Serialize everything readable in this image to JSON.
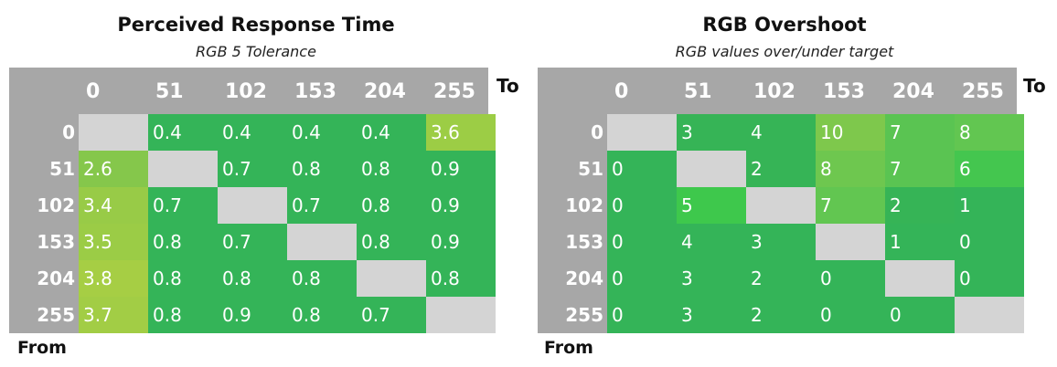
{
  "chart_data": [
    {
      "type": "heatmap",
      "title": "Perceived Response Time",
      "subtitle": "RGB 5 Tolerance",
      "to_label": "To",
      "from_label": "From",
      "columns": [
        "0",
        "51",
        "102",
        "153",
        "204",
        "255"
      ],
      "rows": [
        "0",
        "51",
        "102",
        "153",
        "204",
        "255"
      ],
      "values": [
        [
          null,
          "0.4",
          "0.4",
          "0.4",
          "0.4",
          "3.6"
        ],
        [
          "2.6",
          null,
          "0.7",
          "0.8",
          "0.8",
          "0.9"
        ],
        [
          "3.4",
          "0.7",
          null,
          "0.7",
          "0.8",
          "0.9"
        ],
        [
          "3.5",
          "0.8",
          "0.7",
          null,
          "0.8",
          "0.9"
        ],
        [
          "3.8",
          "0.8",
          "0.8",
          "0.8",
          null,
          "0.8"
        ],
        [
          "3.7",
          "0.8",
          "0.9",
          "0.8",
          "0.7",
          null
        ]
      ],
      "cell_colors": [
        [
          null,
          "#34b458",
          "#34b458",
          "#34b458",
          "#34b458",
          "#9ccd45"
        ],
        [
          "#85c74b",
          null,
          "#34b458",
          "#34b458",
          "#34b458",
          "#34b458"
        ],
        [
          "#98cb47",
          "#34b458",
          null,
          "#34b458",
          "#34b458",
          "#34b458"
        ],
        [
          "#9bcc46",
          "#34b458",
          "#34b458",
          null,
          "#34b458",
          "#34b458"
        ],
        [
          "#a6ce44",
          "#34b458",
          "#34b458",
          "#34b458",
          null,
          "#34b458"
        ],
        [
          "#a2cd45",
          "#34b458",
          "#34b458",
          "#34b458",
          "#34b458",
          null
        ]
      ]
    },
    {
      "type": "heatmap",
      "title": "RGB Overshoot",
      "subtitle": "RGB values over/under target",
      "to_label": "To",
      "from_label": "From",
      "columns": [
        "0",
        "51",
        "102",
        "153",
        "204",
        "255"
      ],
      "rows": [
        "0",
        "51",
        "102",
        "153",
        "204",
        "255"
      ],
      "values": [
        [
          null,
          "3",
          "4",
          "10",
          "7",
          "8"
        ],
        [
          "0",
          null,
          "2",
          "8",
          "7",
          "6"
        ],
        [
          "0",
          "5",
          null,
          "7",
          "2",
          "1"
        ],
        [
          "0",
          "4",
          "3",
          null,
          "1",
          "0"
        ],
        [
          "0",
          "3",
          "2",
          "0",
          null,
          "0"
        ],
        [
          "0",
          "3",
          "2",
          "0",
          "0",
          null
        ]
      ],
      "cell_colors": [
        [
          null,
          "#36b456",
          "#36b456",
          "#7ec84c",
          "#5ac452",
          "#62c651"
        ],
        [
          "#34b458",
          null,
          "#36b456",
          "#6ec74f",
          "#5ac452",
          "#44c64f"
        ],
        [
          "#34b458",
          "#3ec84c",
          null,
          "#62c651",
          "#36b456",
          "#34b458"
        ],
        [
          "#34b458",
          "#34b458",
          "#34b458",
          null,
          "#34b458",
          "#34b458"
        ],
        [
          "#34b458",
          "#34b458",
          "#34b458",
          "#34b458",
          null,
          "#34b458"
        ],
        [
          "#34b458",
          "#34b458",
          "#34b458",
          "#34b458",
          "#34b458",
          null
        ]
      ]
    }
  ]
}
